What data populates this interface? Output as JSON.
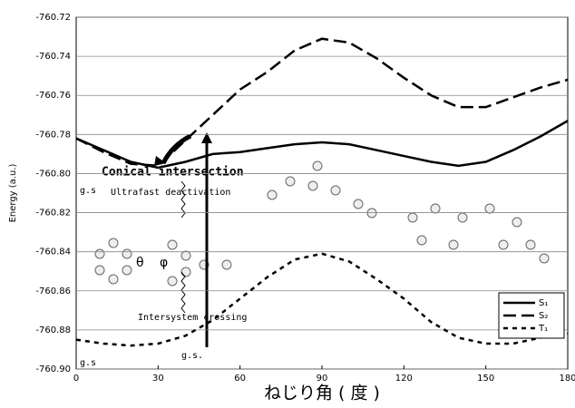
{
  "chart_data": {
    "type": "line",
    "y_label": "Energy (a.u.)",
    "x_label": "ねじり角 ( 度 )",
    "x": [
      0,
      10,
      20,
      30,
      40,
      50,
      60,
      70,
      80,
      90,
      100,
      110,
      120,
      130,
      140,
      150,
      160,
      170,
      180
    ],
    "series": [
      {
        "name": "S₁",
        "color": "#000000",
        "line_style": "solid",
        "values": [
          -760.782,
          -760.788,
          -760.794,
          -760.797,
          -760.794,
          -760.79,
          -760.789,
          -760.787,
          -760.785,
          -760.784,
          -760.785,
          -760.788,
          -760.791,
          -760.794,
          -760.796,
          -760.794,
          -760.788,
          -760.781,
          -760.773
        ]
      },
      {
        "name": "S₂",
        "color": "#000000",
        "line_style": "dashed",
        "values": [
          -760.782,
          -760.789,
          -760.795,
          -760.796,
          -760.783,
          -760.77,
          -760.757,
          -760.748,
          -760.737,
          -760.731,
          -760.733,
          -760.741,
          -760.751,
          -760.76,
          -760.766,
          -760.766,
          -760.761,
          -760.756,
          -760.752
        ]
      },
      {
        "name": "T₁",
        "color": "#000000",
        "line_style": "dotted",
        "values": [
          -760.885,
          -760.887,
          -760.888,
          -760.887,
          -760.883,
          -760.875,
          -760.864,
          -760.853,
          -760.844,
          -760.841,
          -760.845,
          -760.854,
          -760.864,
          -760.876,
          -760.884,
          -760.887,
          -760.887,
          -760.884,
          -760.882
        ]
      }
    ],
    "xlim": [
      0,
      180
    ],
    "xticks": [
      0,
      30,
      60,
      90,
      120,
      150,
      180
    ],
    "ylim": [
      -760.9,
      -760.72
    ],
    "yticks": [
      {
        "value": -760.9,
        "label": "-760.90"
      },
      -760.88,
      -760.86,
      -760.84,
      -760.82,
      {
        "value": -760.8,
        "label": "-760.80"
      },
      -760.78,
      -760.76,
      -760.74,
      -760.72
    ],
    "grid": true,
    "legend": "lower right",
    "annotations": [
      "Conical intersection",
      "g.s",
      "Ultrafast deactivation",
      "Intersystem crossing",
      "g.s.",
      "g.s",
      "θ",
      "φ"
    ]
  }
}
